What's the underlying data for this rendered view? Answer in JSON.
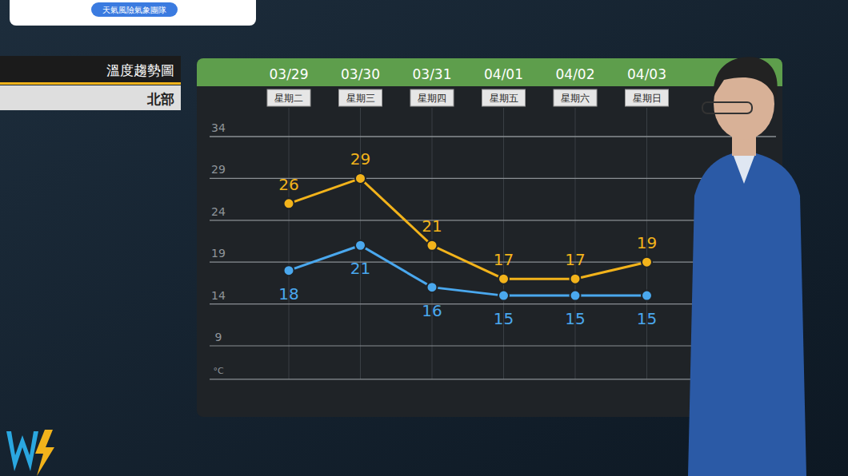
{
  "header": {
    "brand": "天氣風險氣象團隊"
  },
  "chart_data": {
    "type": "line",
    "title": "溫度趨勢圖",
    "subtitle": "北部",
    "categories": [
      "03/29",
      "03/30",
      "03/31",
      "04/01",
      "04/02",
      "04/03"
    ],
    "weekdays": [
      "星期二",
      "星期三",
      "星期四",
      "星期五",
      "星期六",
      "星期日"
    ],
    "series": [
      {
        "color": "#f2b31b",
        "marker": "circle",
        "values": [
          26,
          29,
          21,
          17,
          17,
          19
        ]
      },
      {
        "color": "#4aa8ee",
        "marker": "circle",
        "values": [
          18,
          21,
          16,
          15,
          15,
          15
        ]
      }
    ],
    "y_label": "°C",
    "ylim": [
      5,
      34
    ],
    "yticks": [
      9,
      14,
      19,
      24,
      29,
      34
    ],
    "grid": true,
    "data_labels": true
  }
}
